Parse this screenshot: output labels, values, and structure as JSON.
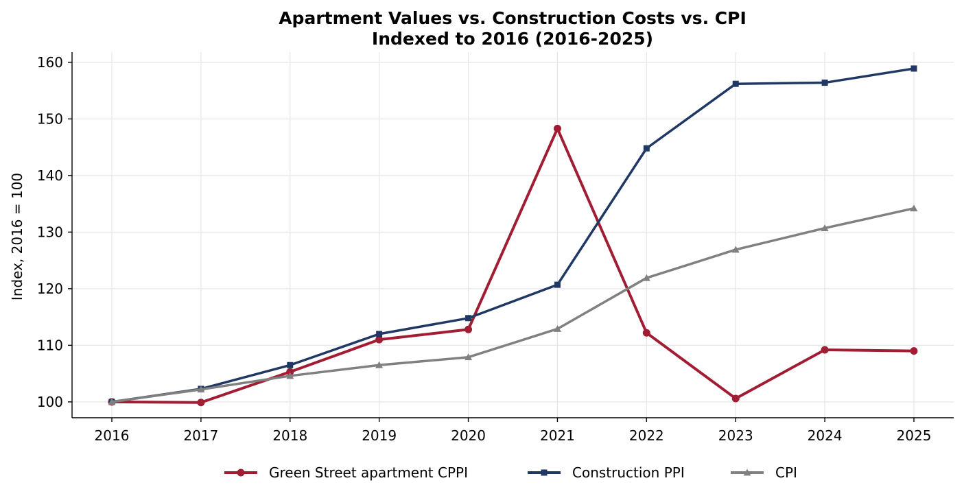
{
  "chart_data": {
    "type": "line",
    "title": "Apartment Values vs. Construction Costs vs. CPI",
    "subtitle": "Indexed to 2016 (2016-2025)",
    "xlabel": "",
    "ylabel": "Index, 2016 = 100",
    "x": [
      "2016",
      "2017",
      "2018",
      "2019",
      "2020",
      "2021",
      "2022",
      "2023",
      "2024",
      "2025"
    ],
    "ylim": [
      97.2,
      161.8
    ],
    "yticks": [
      "100",
      "110",
      "120",
      "130",
      "140",
      "150",
      "160"
    ],
    "grid": true,
    "legend_position": "bottom-center",
    "series": [
      {
        "name": "Green Street apartment CPPI",
        "color": "#A11D33",
        "marker": "circle",
        "values": [
          100.0,
          99.9,
          105.3,
          111.0,
          112.8,
          148.3,
          112.2,
          100.6,
          109.2,
          109.0
        ]
      },
      {
        "name": "Construction PPI",
        "color": "#1F3864",
        "marker": "square",
        "values": [
          100.0,
          102.3,
          106.5,
          112.0,
          114.8,
          120.7,
          144.8,
          156.2,
          156.4,
          158.9
        ]
      },
      {
        "name": "CPI",
        "color": "#808080",
        "marker": "triangle",
        "values": [
          100.0,
          102.2,
          104.6,
          106.5,
          107.9,
          112.9,
          121.9,
          126.9,
          130.7,
          134.2
        ]
      }
    ]
  }
}
